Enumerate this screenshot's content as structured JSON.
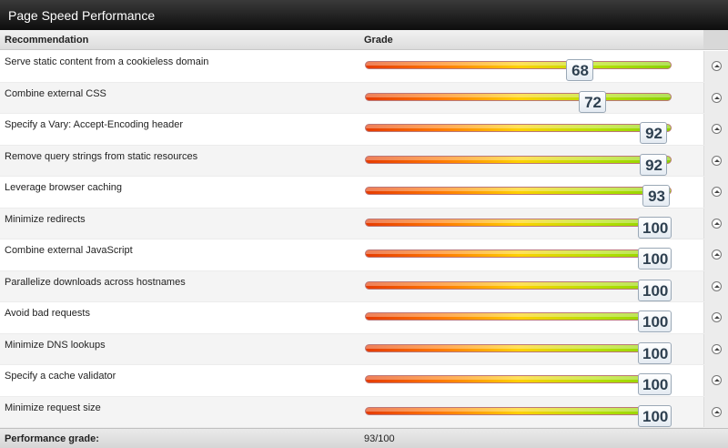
{
  "title": "Page Speed Performance",
  "header": {
    "recommendation": "Recommendation",
    "grade": "Grade"
  },
  "rows": [
    {
      "label": "Serve static content from a cookieless domain",
      "score": 68
    },
    {
      "label": "Combine external CSS",
      "score": 72
    },
    {
      "label": "Specify a Vary: Accept-Encoding header",
      "score": 92
    },
    {
      "label": "Remove query strings from static resources",
      "score": 92
    },
    {
      "label": "Leverage browser caching",
      "score": 93
    },
    {
      "label": "Minimize redirects",
      "score": 100
    },
    {
      "label": "Combine external JavaScript",
      "score": 100
    },
    {
      "label": "Parallelize downloads across hostnames",
      "score": 100
    },
    {
      "label": "Avoid bad requests",
      "score": 100
    },
    {
      "label": "Minimize DNS lookups",
      "score": 100
    },
    {
      "label": "Specify a cache validator",
      "score": 100
    },
    {
      "label": "Minimize request size",
      "score": 100
    }
  ],
  "footer": {
    "label": "Performance grade:",
    "value": "93/100"
  },
  "icons": {
    "row_toggle": "chevron-up-circle-icon"
  },
  "colors": {
    "title_bg": "#1a1a1a",
    "bar_low": "#e63b00",
    "bar_mid": "#ffd000",
    "bar_high": "#8ad000",
    "score_text": "#2e4050"
  }
}
